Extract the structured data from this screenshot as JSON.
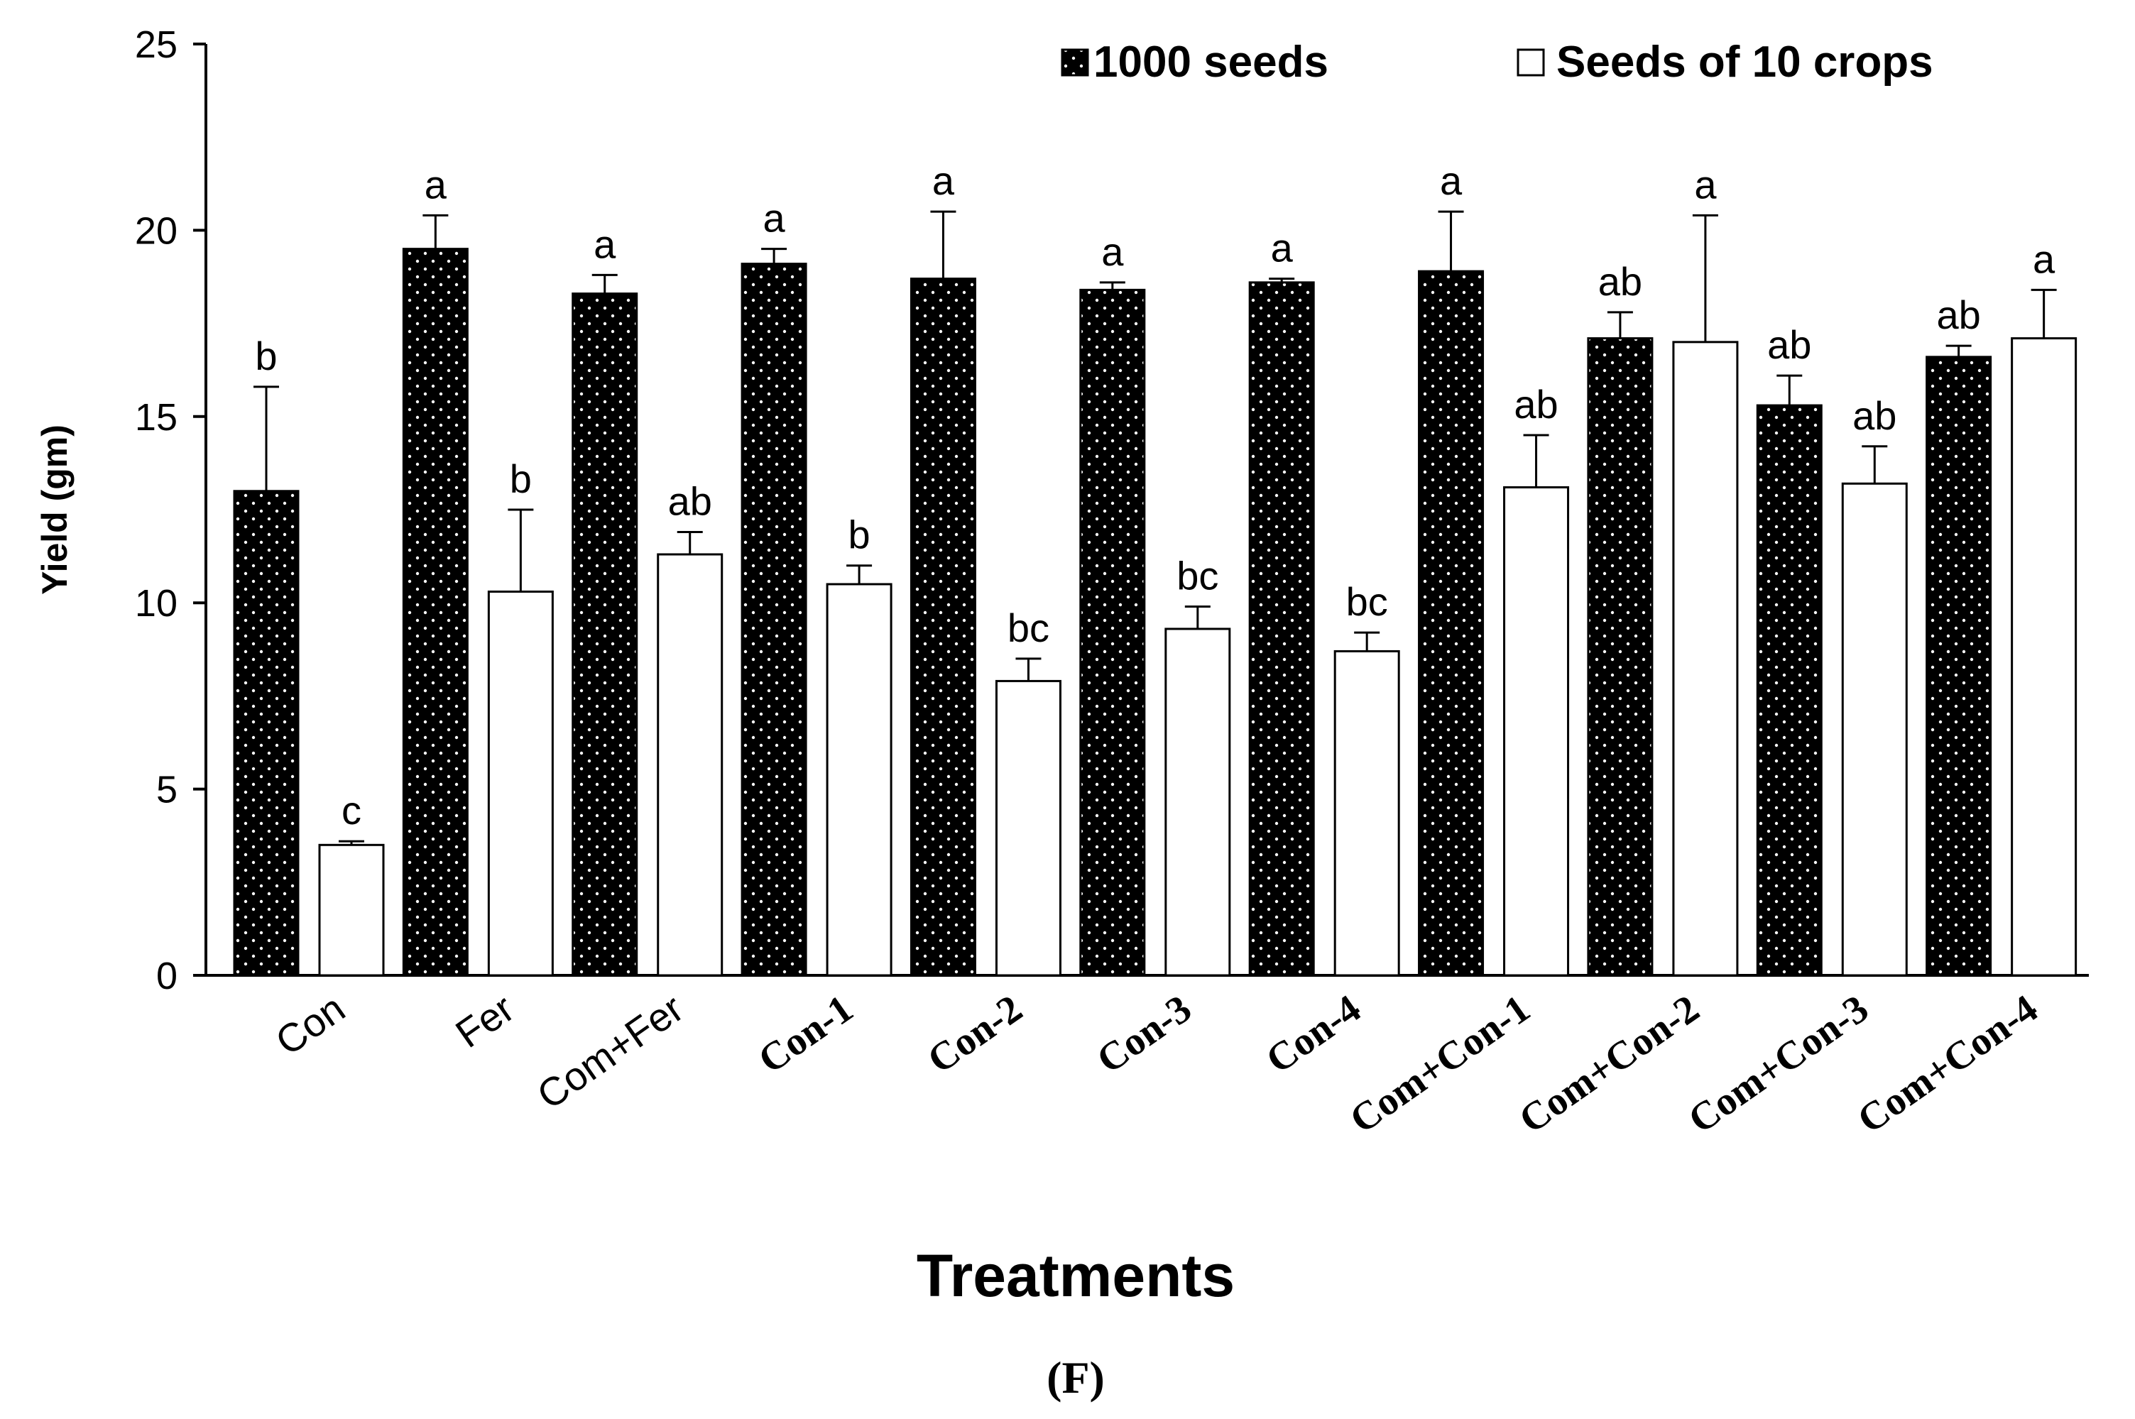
{
  "panel_label": "(F)",
  "colors": {
    "series1_fill": "#000000",
    "series1_dot": "#ffffff",
    "series2_fill": "#ffffff",
    "stroke": "#000000"
  },
  "chart_data": {
    "type": "bar",
    "title": "",
    "xlabel": "Treatments",
    "ylabel": "Yield (gm)",
    "ylim": [
      0,
      25
    ],
    "yticks": [
      0,
      5,
      10,
      15,
      20,
      25
    ],
    "grid": false,
    "legend_position": "top-right",
    "categories": [
      "Con",
      "Fer",
      "Com+Fer",
      "Con-1",
      "Con-2",
      "Con-3",
      "Con-4",
      "Com+Con-1",
      "Com+Con-2",
      "Com+Con-3",
      "Com+Con-4"
    ],
    "category_font": [
      "sans",
      "sans",
      "sans",
      "serif",
      "serif",
      "serif",
      "serif",
      "serif",
      "serif",
      "serif",
      "serif"
    ],
    "series": [
      {
        "name": "1000 seeds",
        "values": [
          13.0,
          19.5,
          18.3,
          19.1,
          18.7,
          18.4,
          18.6,
          18.9,
          17.1,
          15.3,
          16.6
        ],
        "errors": [
          2.8,
          0.9,
          0.5,
          0.4,
          1.8,
          0.2,
          0.1,
          1.6,
          0.7,
          0.8,
          0.3
        ],
        "letters": [
          "b",
          "a",
          "a",
          "a",
          "a",
          "a",
          "a",
          "a",
          "ab",
          "ab",
          "ab"
        ]
      },
      {
        "name": "Seeds of 10 crops",
        "values": [
          3.5,
          10.3,
          11.3,
          10.5,
          7.9,
          9.3,
          8.7,
          13.1,
          17.0,
          13.2,
          17.1
        ],
        "errors": [
          0.1,
          2.2,
          0.6,
          0.5,
          0.6,
          0.6,
          0.5,
          1.4,
          3.4,
          1.0,
          1.3
        ],
        "letters": [
          "c",
          "b",
          "ab",
          "b",
          "bc",
          "bc",
          "bc",
          "ab",
          "a",
          "ab",
          "a"
        ]
      }
    ]
  }
}
